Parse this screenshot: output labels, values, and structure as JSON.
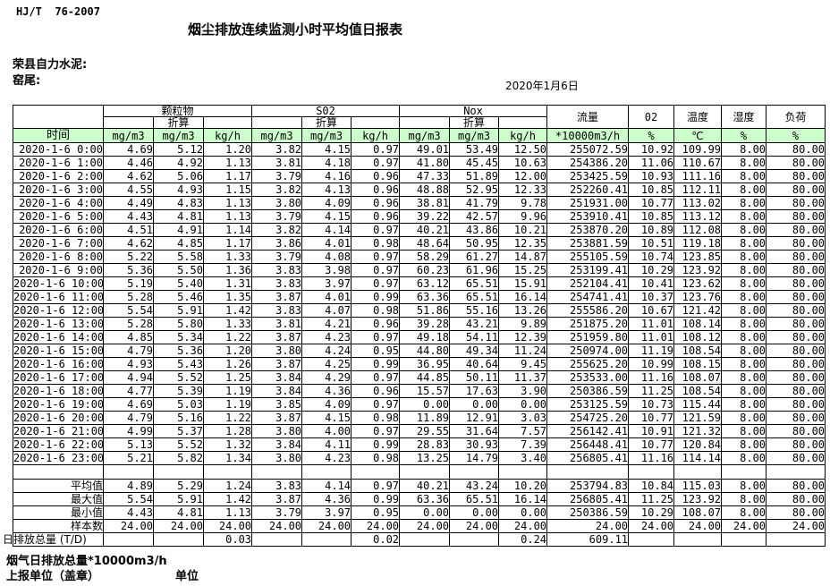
{
  "page": {
    "standard_code": "HJ/T  76-2007",
    "title": "烟尘排放连续监测小时平均值日报表",
    "company": "荣县自力水泥:",
    "location": "窑尾:",
    "date": "2020年1月6日"
  },
  "table": {
    "time_label": "时间",
    "converted_label": "折算",
    "groups": {
      "pm": "颗粒物",
      "so2": "S02",
      "nox": "Nox",
      "flow": "流量",
      "o2": "02",
      "temperature": "温度",
      "humidity": "湿度",
      "load": "负荷"
    },
    "units": [
      "mg/m3",
      "mg/m3",
      "kg/h",
      "mg/m3",
      "mg/m3",
      "kg/h",
      "mg/m3",
      "mg/m3",
      "kg/h",
      "*10000m3/h",
      "%",
      "℃",
      "%",
      "%"
    ],
    "rows": [
      {
        "time": "2020-1-6 0:00",
        "values": [
          "4.69",
          "5.12",
          "1.20",
          "3.82",
          "4.15",
          "0.97",
          "49.01",
          "53.49",
          "12.50",
          "255072.59",
          "10.92",
          "109.99",
          "8.00",
          "80.00"
        ]
      },
      {
        "time": "2020-1-6 1:00",
        "values": [
          "4.46",
          "4.92",
          "1.13",
          "3.81",
          "4.18",
          "0.97",
          "41.80",
          "45.45",
          "10.63",
          "254386.20",
          "11.06",
          "110.67",
          "8.00",
          "80.00"
        ]
      },
      {
        "time": "2020-1-6 2:00",
        "values": [
          "4.62",
          "5.06",
          "1.17",
          "3.79",
          "4.16",
          "0.96",
          "47.33",
          "51.89",
          "12.00",
          "253425.59",
          "10.93",
          "111.16",
          "8.00",
          "80.00"
        ]
      },
      {
        "time": "2020-1-6 3:00",
        "values": [
          "4.55",
          "4.93",
          "1.15",
          "3.82",
          "4.13",
          "0.96",
          "48.88",
          "52.95",
          "12.33",
          "252260.41",
          "10.85",
          "112.11",
          "8.00",
          "80.00"
        ]
      },
      {
        "time": "2020-1-6 4:00",
        "values": [
          "4.49",
          "4.83",
          "1.13",
          "3.80",
          "4.09",
          "0.96",
          "38.81",
          "41.79",
          "9.78",
          "251931.00",
          "10.77",
          "113.02",
          "8.00",
          "80.00"
        ]
      },
      {
        "time": "2020-1-6 5:00",
        "values": [
          "4.43",
          "4.81",
          "1.13",
          "3.79",
          "4.15",
          "0.96",
          "39.22",
          "42.57",
          "9.96",
          "253910.41",
          "10.85",
          "113.12",
          "8.00",
          "80.00"
        ]
      },
      {
        "time": "2020-1-6 6:00",
        "values": [
          "4.51",
          "4.91",
          "1.14",
          "3.82",
          "4.14",
          "0.97",
          "40.21",
          "43.86",
          "10.21",
          "253870.20",
          "10.89",
          "112.08",
          "8.00",
          "80.00"
        ]
      },
      {
        "time": "2020-1-6 7:00",
        "values": [
          "4.62",
          "4.85",
          "1.17",
          "3.86",
          "4.01",
          "0.98",
          "48.64",
          "50.95",
          "12.35",
          "253881.59",
          "10.51",
          "119.18",
          "8.00",
          "80.00"
        ]
      },
      {
        "time": "2020-1-6 8:00",
        "values": [
          "5.22",
          "5.58",
          "1.33",
          "3.79",
          "4.08",
          "0.97",
          "58.29",
          "61.27",
          "14.87",
          "255105.59",
          "10.74",
          "123.85",
          "8.00",
          "80.00"
        ]
      },
      {
        "time": "2020-1-6 9:00",
        "values": [
          "5.36",
          "5.50",
          "1.36",
          "3.83",
          "3.98",
          "0.97",
          "60.23",
          "61.96",
          "15.25",
          "253199.41",
          "10.29",
          "123.92",
          "8.00",
          "80.00"
        ]
      },
      {
        "time": "2020-1-6 10:00",
        "values": [
          "5.19",
          "5.40",
          "1.31",
          "3.83",
          "3.97",
          "0.97",
          "63.12",
          "65.51",
          "15.91",
          "252104.41",
          "10.41",
          "123.62",
          "8.00",
          "80.00"
        ]
      },
      {
        "time": "2020-1-6 11:00",
        "values": [
          "5.28",
          "5.46",
          "1.35",
          "3.87",
          "4.01",
          "0.99",
          "63.36",
          "65.51",
          "16.14",
          "254741.41",
          "10.37",
          "123.76",
          "8.00",
          "80.00"
        ]
      },
      {
        "time": "2020-1-6 12:00",
        "values": [
          "5.54",
          "5.91",
          "1.42",
          "3.83",
          "4.07",
          "0.98",
          "51.86",
          "55.16",
          "13.26",
          "255586.20",
          "10.67",
          "121.42",
          "8.00",
          "80.00"
        ]
      },
      {
        "time": "2020-1-6 13:00",
        "values": [
          "5.28",
          "5.80",
          "1.33",
          "3.81",
          "4.21",
          "0.96",
          "39.28",
          "43.21",
          "9.89",
          "251875.20",
          "11.01",
          "108.14",
          "8.00",
          "80.00"
        ]
      },
      {
        "time": "2020-1-6 14:00",
        "values": [
          "4.85",
          "5.34",
          "1.22",
          "3.87",
          "4.23",
          "0.97",
          "49.18",
          "54.11",
          "12.39",
          "251959.80",
          "11.01",
          "108.12",
          "8.00",
          "80.00"
        ]
      },
      {
        "time": "2020-1-6 15:00",
        "values": [
          "4.79",
          "5.36",
          "1.20",
          "3.80",
          "4.24",
          "0.95",
          "44.80",
          "49.34",
          "11.24",
          "250974.00",
          "11.19",
          "108.54",
          "8.00",
          "80.00"
        ]
      },
      {
        "time": "2020-1-6 16:00",
        "values": [
          "4.93",
          "5.43",
          "1.26",
          "3.87",
          "4.25",
          "0.99",
          "36.95",
          "40.64",
          "9.45",
          "255625.20",
          "10.99",
          "108.15",
          "8.00",
          "80.00"
        ]
      },
      {
        "time": "2020-1-6 17:00",
        "values": [
          "4.94",
          "5.52",
          "1.25",
          "3.84",
          "4.29",
          "0.97",
          "44.85",
          "50.11",
          "11.37",
          "253533.00",
          "11.16",
          "108.07",
          "8.00",
          "80.00"
        ]
      },
      {
        "time": "2020-1-6 18:00",
        "values": [
          "4.77",
          "5.39",
          "1.19",
          "3.84",
          "4.36",
          "0.96",
          "15.57",
          "17.63",
          "3.90",
          "250386.59",
          "11.25",
          "108.54",
          "8.00",
          "80.00"
        ]
      },
      {
        "time": "2020-1-6 19:00",
        "values": [
          "4.69",
          "5.03",
          "1.19",
          "3.85",
          "4.09",
          "0.97",
          "0.00",
          "0.00",
          "0.00",
          "253125.59",
          "10.73",
          "115.44",
          "8.00",
          "80.00"
        ]
      },
      {
        "time": "2020-1-6 20:00",
        "values": [
          "4.79",
          "5.16",
          "1.22",
          "3.87",
          "4.15",
          "0.98",
          "11.89",
          "12.91",
          "3.03",
          "254725.20",
          "10.77",
          "121.59",
          "8.00",
          "80.00"
        ]
      },
      {
        "time": "2020-1-6 21:00",
        "values": [
          "4.99",
          "5.37",
          "1.28",
          "3.80",
          "4.00",
          "0.97",
          "29.55",
          "31.64",
          "7.57",
          "256142.41",
          "10.91",
          "121.32",
          "8.00",
          "80.00"
        ]
      },
      {
        "time": "2020-1-6 22:00",
        "values": [
          "5.13",
          "5.52",
          "1.32",
          "3.84",
          "4.11",
          "0.99",
          "28.83",
          "30.93",
          "7.39",
          "256448.41",
          "10.77",
          "120.84",
          "8.00",
          "80.00"
        ]
      },
      {
        "time": "2020-1-6 23:00",
        "values": [
          "5.21",
          "5.82",
          "1.34",
          "3.80",
          "4.23",
          "0.98",
          "13.25",
          "14.79",
          "3.40",
          "256805.41",
          "11.16",
          "114.14",
          "8.00",
          "80.00"
        ]
      }
    ],
    "summary": [
      {
        "label": "平均值",
        "values": [
          "4.89",
          "5.29",
          "1.24",
          "3.83",
          "4.14",
          "0.97",
          "40.21",
          "43.24",
          "10.20",
          "253794.83",
          "10.84",
          "115.03",
          "8.00",
          "80.00"
        ]
      },
      {
        "label": "最大值",
        "values": [
          "5.54",
          "5.91",
          "1.42",
          "3.87",
          "4.36",
          "0.99",
          "63.36",
          "65.51",
          "16.14",
          "256805.41",
          "11.25",
          "123.92",
          "8.00",
          "80.00"
        ]
      },
      {
        "label": "最小值",
        "values": [
          "4.43",
          "4.81",
          "1.13",
          "3.79",
          "3.97",
          "0.95",
          "0.00",
          "0.00",
          "0.00",
          "250386.59",
          "10.29",
          "108.07",
          "8.00",
          "80.00"
        ]
      },
      {
        "label": "样本数",
        "values": [
          "24.00",
          "24.00",
          "24.00",
          "24.00",
          "24.00",
          "24.00",
          "24.00",
          "24.00",
          "24.00",
          "24.00",
          "24.00",
          "24.00",
          "24.00",
          "24.00"
        ]
      }
    ],
    "daily_total": {
      "label": "日排放总量 (T/D)",
      "values": [
        "",
        "",
        "0.03",
        "",
        "",
        "0.02",
        "",
        "",
        "0.24",
        "609.11",
        "",
        "",
        "",
        ""
      ]
    }
  },
  "footer": {
    "note": "烟气日排放总量*10000m3/h",
    "report_unit_label": "上报单位（盖章）",
    "unit_label": "单位"
  }
}
